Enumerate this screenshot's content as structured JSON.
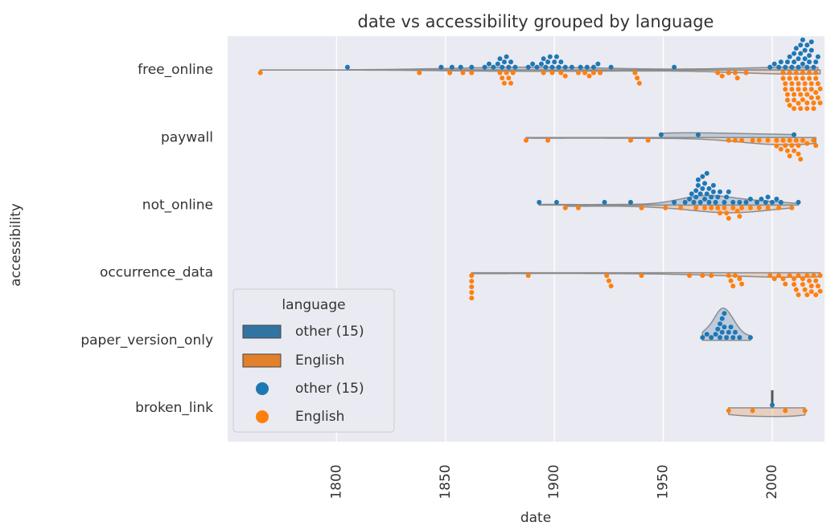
{
  "chart_data": {
    "type": "split_violin_swarm",
    "title": "date vs accessibility grouped by language",
    "x_label": "date",
    "y_label": "accessibility",
    "categories": [
      "free_online",
      "paywall",
      "not_online",
      "occurrence_data",
      "paper_version_only",
      "broken_link"
    ],
    "series": [
      {
        "name": "other (15)",
        "color": "#1f77b4",
        "violin_color": "#3274a1",
        "values": [
          [
            1805,
            1848,
            1853,
            1857,
            1862,
            1868,
            1870,
            1872,
            1874,
            1875,
            1876,
            1877,
            1878,
            1879,
            1880,
            1882,
            1888,
            1890,
            1892,
            1894,
            1895,
            1896,
            1897,
            1898,
            1899,
            1900,
            1901,
            1902,
            1903,
            1905,
            1908,
            1912,
            1915,
            1918,
            1920,
            1926,
            1955,
            1999,
            2001,
            2003,
            2004,
            2006,
            2007,
            2008,
            2009,
            2010,
            2011,
            2012,
            2013,
            2014,
            2015,
            2016,
            2017,
            2018,
            2019,
            2020,
            2021,
            2010,
            2012,
            2014,
            2016,
            2018,
            2013,
            2015,
            2017
          ],
          [
            1949,
            1966,
            2010
          ],
          [
            1893,
            1901,
            1923,
            1935,
            1955,
            1960,
            1962,
            1963,
            1964,
            1965,
            1966,
            1967,
            1968,
            1969,
            1970,
            1971,
            1972,
            1973,
            1974,
            1975,
            1976,
            1978,
            1979,
            1980,
            1982,
            1985,
            1988,
            1990,
            1993,
            1995,
            1997,
            1998,
            2000,
            2002,
            2004,
            2012,
            1965,
            1967,
            1969,
            1971,
            1973,
            1966,
            1968,
            1970
          ],
          [],
          [
            1968,
            1970,
            1972,
            1974,
            1975,
            1976,
            1976,
            1977,
            1977,
            1978,
            1978,
            1979,
            1980,
            1981,
            1982,
            1983,
            1985,
            1990
          ],
          [
            2000
          ]
        ]
      },
      {
        "name": "English",
        "color": "#ff7f0e",
        "violin_color": "#e1812c",
        "values": [
          [
            1765,
            1838,
            1852,
            1858,
            1862,
            1875,
            1876,
            1877,
            1878,
            1879,
            1880,
            1881,
            1895,
            1899,
            1903,
            1905,
            1911,
            1914,
            1916,
            1918,
            1921,
            1937,
            1938,
            1939,
            1975,
            1977,
            1980,
            1983,
            1984,
            1988,
            2005,
            2006,
            2007,
            2008,
            2009,
            2010,
            2011,
            2012,
            2013,
            2014,
            2015,
            2016,
            2017,
            2018,
            2019,
            2020,
            2021,
            2022,
            2005,
            2006,
            2007,
            2008,
            2009,
            2010,
            2011,
            2012,
            2013,
            2014,
            2015,
            2016,
            2017,
            2018,
            2019,
            2020,
            2021,
            2022,
            2008,
            2010,
            2012,
            2014,
            2016,
            2018,
            2020
          ],
          [
            1887,
            1897,
            1935,
            1943,
            1980,
            1983,
            1986,
            1991,
            1994,
            1998,
            2002,
            2004,
            2005,
            2006,
            2007,
            2008,
            2009,
            2010,
            2011,
            2012,
            2013,
            2014,
            2016,
            2019,
            2020,
            2002,
            2008,
            2012
          ],
          [
            1905,
            1911,
            1940,
            1951,
            1958,
            1965,
            1969,
            1972,
            1976,
            1978,
            1980,
            1982,
            1984,
            1986,
            1990,
            1994,
            1998,
            2003,
            2009,
            1975,
            1979,
            1985
          ],
          [
            1862,
            1862,
            1862,
            1862,
            1862,
            1888,
            1924,
            1925,
            1926,
            1940,
            1962,
            1968,
            1972,
            1980,
            1981,
            1982,
            1983,
            1985,
            1986,
            1999,
            2001,
            2003,
            2005,
            2006,
            2008,
            2010,
            2011,
            2012,
            2014,
            2015,
            2016,
            2017,
            2018,
            2019,
            2020,
            2021,
            2022,
            2010,
            2012,
            2014,
            2016,
            2018,
            2020,
            2022
          ],
          [],
          [
            1980,
            1991,
            2006,
            2015
          ]
        ]
      }
    ],
    "xlim": [
      1750,
      2024
    ],
    "xticks": [
      1800,
      1850,
      1900,
      1950,
      2000
    ],
    "grid": true,
    "legend_title": "language",
    "legend_loc": "lower left"
  }
}
